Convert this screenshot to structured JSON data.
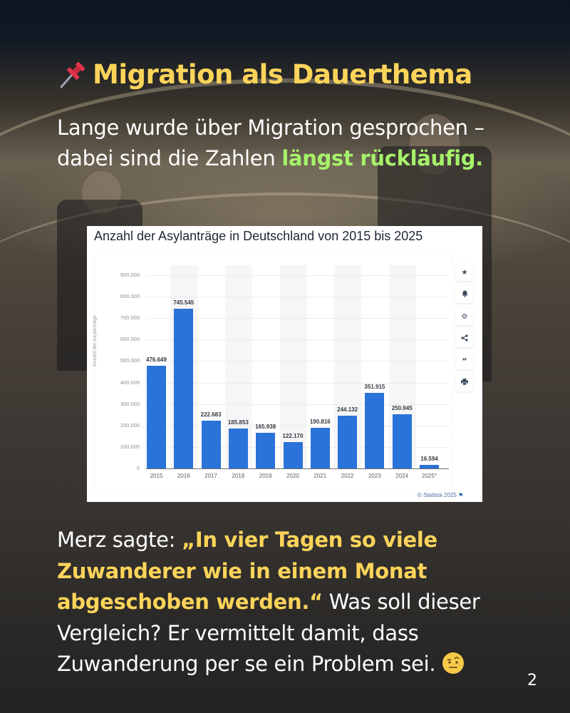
{
  "slide": {
    "title": "Migration als Dauerthema",
    "title_icon": "pushpin-icon",
    "intro": {
      "text_1": "Lange wurde über Migration gesprochen – dabei sind die Zahlen ",
      "highlight": "längst rückläufig."
    },
    "quote": {
      "prefix": "Merz sagte: ",
      "quoted": "„In vier Tagen so viele Zuwanderer wie in einem Monat abgeschoben werden.“",
      "suffix": " Was soll dieser Vergleich? Er vermittelt damit, dass Zuwanderung per se ein Problem sei.",
      "emoji": "face-with-raised-eyebrow-icon"
    },
    "page_number": "2",
    "colors": {
      "title_yellow": "#fcd45a",
      "highlight_green": "#a6f26a",
      "bar_blue": "#2a73d9"
    }
  },
  "chart": {
    "credit": "© Statista 2025",
    "side_buttons": [
      "star-icon",
      "bell-icon",
      "gear-icon",
      "share-icon",
      "quote-icon",
      "print-icon"
    ],
    "y_ticks": [
      "900.000",
      "800.000",
      "700.000",
      "600.000",
      "500.000",
      "400.000",
      "300.000",
      "200.000",
      "100.000",
      "0"
    ]
  },
  "chart_data": {
    "type": "bar",
    "title": "Anzahl der Asylanträge in Deutschland von 2015 bis 2025",
    "xlabel": "",
    "ylabel": "Anzahl der Asylanträge",
    "categories": [
      "2015",
      "2016",
      "2017",
      "2018",
      "2019",
      "2020",
      "2021",
      "2022",
      "2023",
      "2024",
      "2025*"
    ],
    "values": [
      476649,
      745545,
      222683,
      185853,
      165938,
      122170,
      190816,
      244132,
      351915,
      250945,
      16594
    ],
    "value_labels": [
      "476.649",
      "745.545",
      "222.683",
      "185.853",
      "165.938",
      "122.170",
      "190.816",
      "244.132",
      "351.915",
      "250.945",
      "16.594"
    ],
    "ylim": [
      0,
      900000
    ],
    "y_tick_step": 100000,
    "grid": true,
    "legend": "none",
    "source": "© Statista 2025"
  }
}
